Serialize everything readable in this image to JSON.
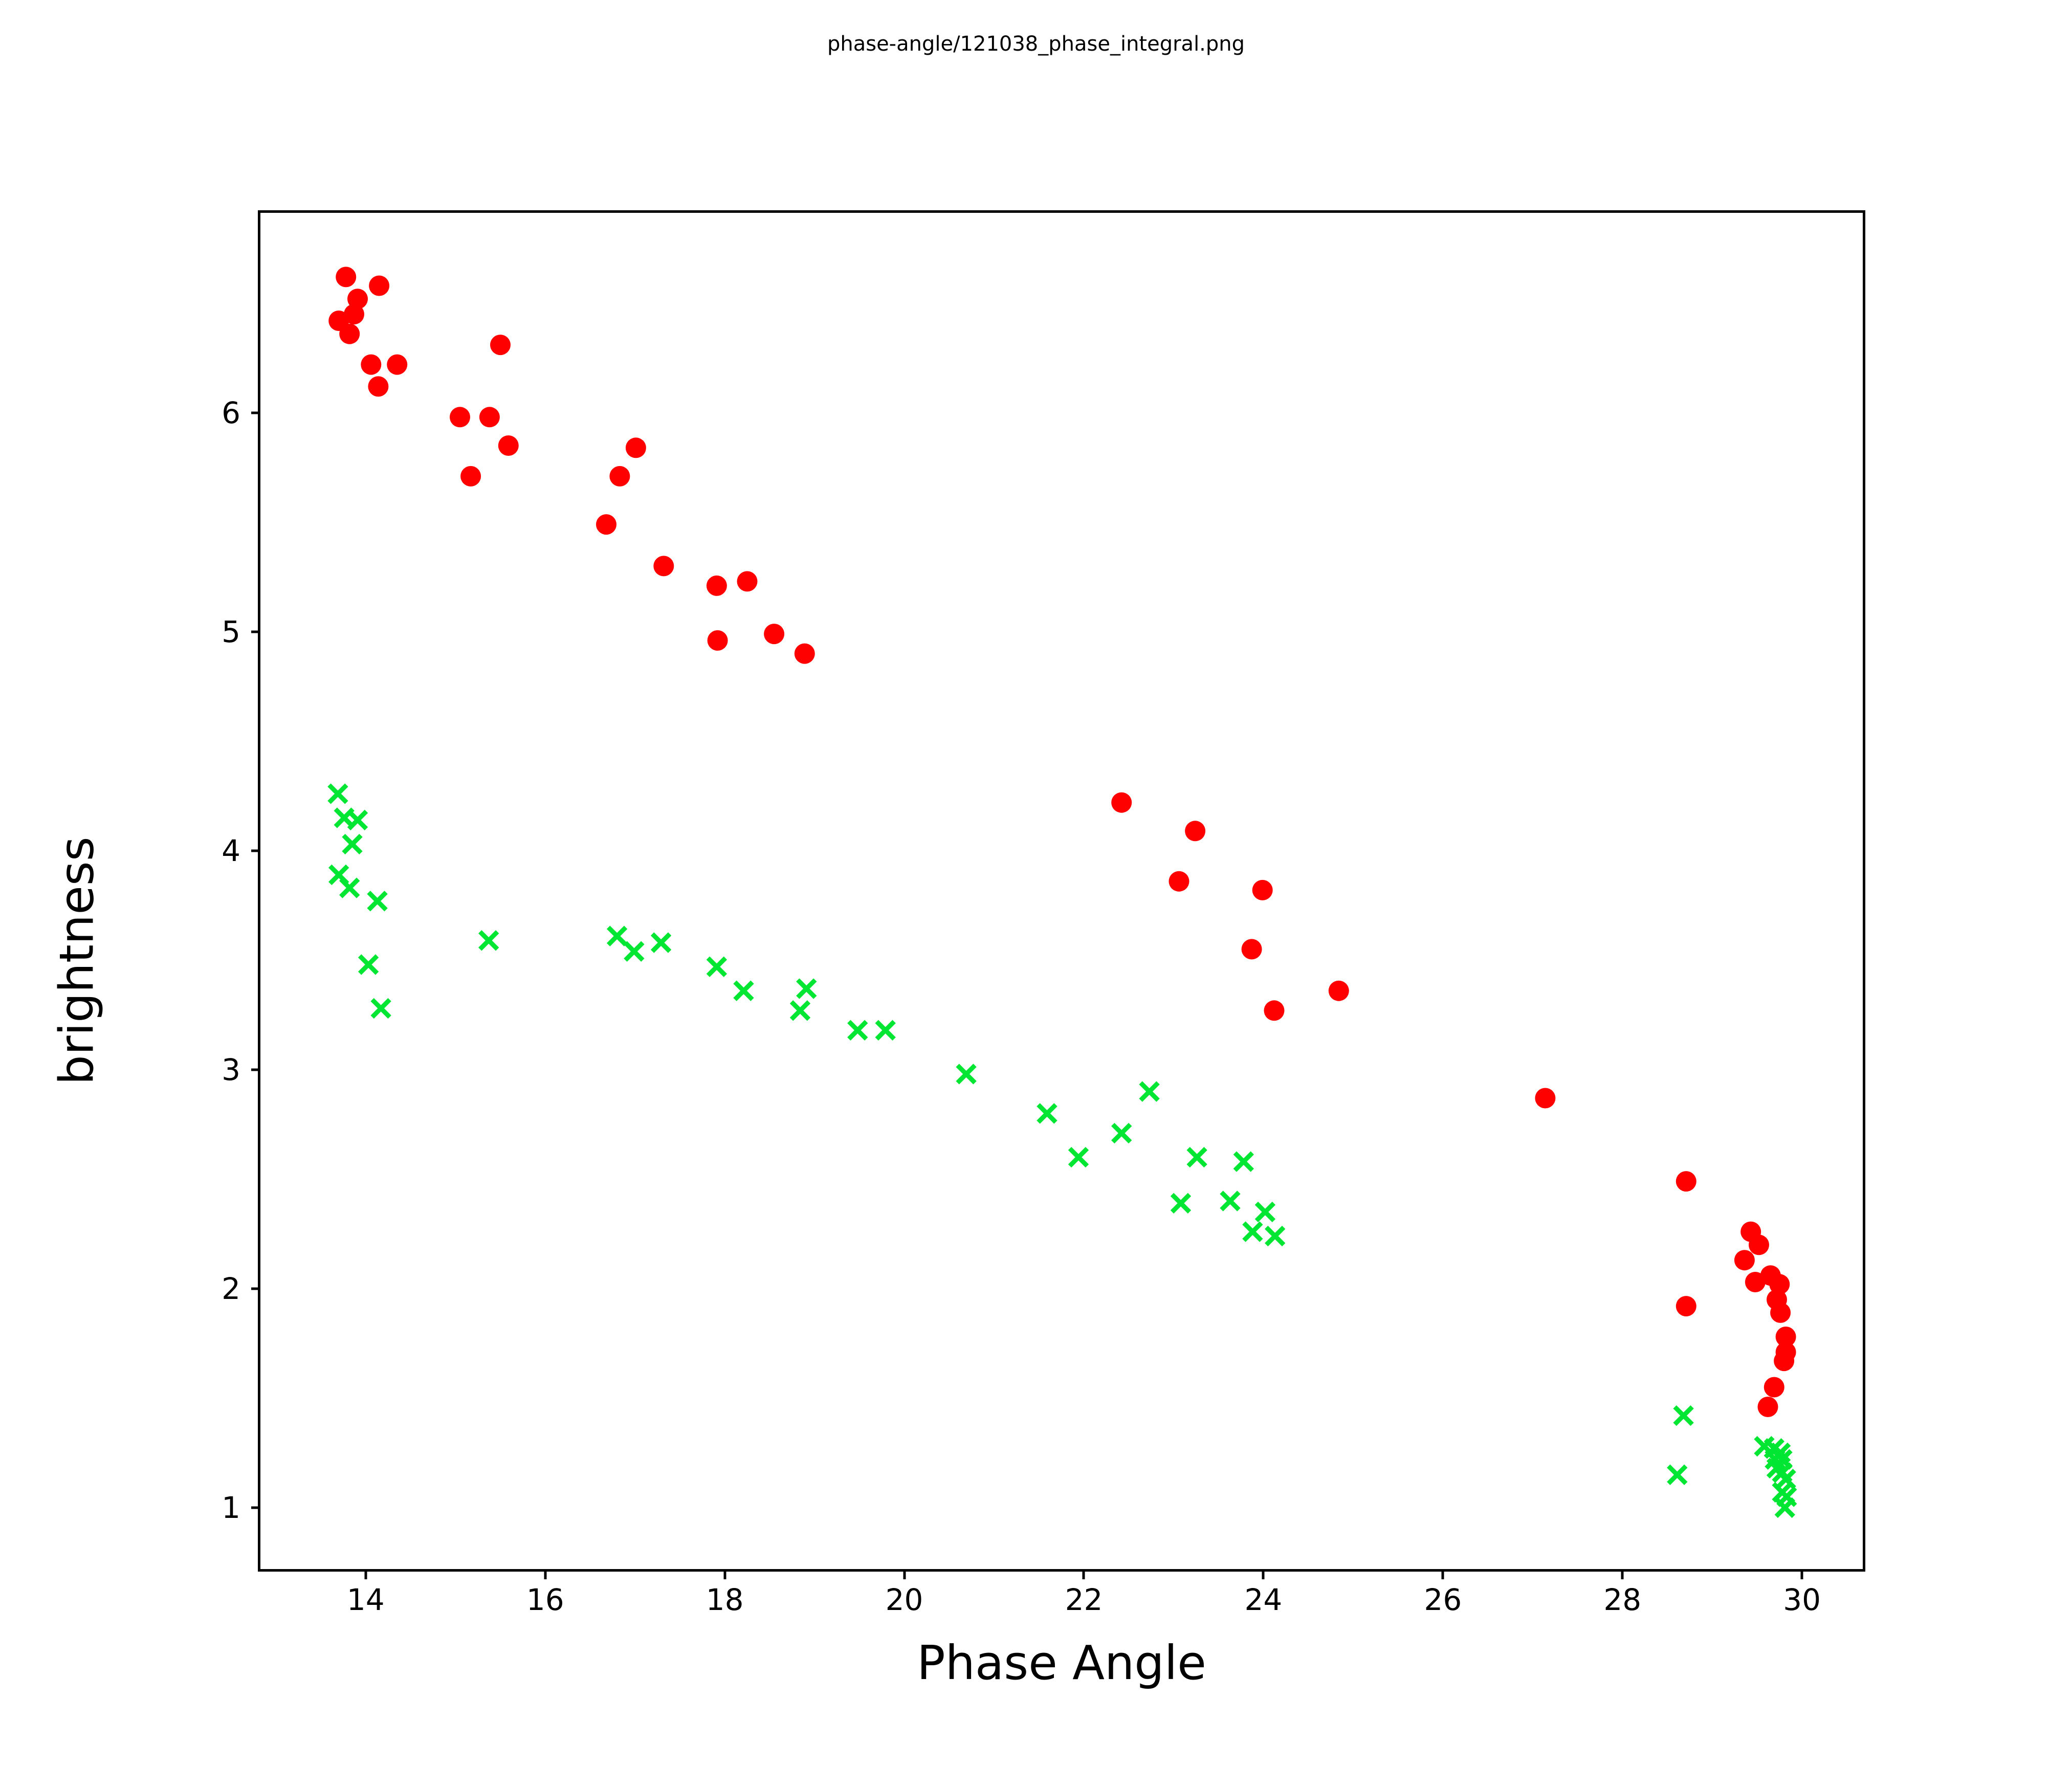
{
  "chart_data": {
    "type": "scatter",
    "title": "phase-angle/121038_phase_integral.png",
    "xlabel": "Phase Angle",
    "ylabel": "brightness",
    "xlim": [
      12.81,
      30.7
    ],
    "ylim": [
      0.71,
      6.92
    ],
    "x_ticks": [
      14,
      16,
      18,
      20,
      22,
      24,
      26,
      28,
      30
    ],
    "y_ticks": [
      1,
      2,
      3,
      4,
      5,
      6
    ],
    "grid": false,
    "legend": "none",
    "series": [
      {
        "name": "red-circles",
        "marker": "circle",
        "color": "#ff0000",
        "marker_size_px": 40,
        "points": [
          [
            13.78,
            6.62
          ],
          [
            14.15,
            6.58
          ],
          [
            13.91,
            6.52
          ],
          [
            13.87,
            6.45
          ],
          [
            13.7,
            6.42
          ],
          [
            13.82,
            6.36
          ],
          [
            14.06,
            6.22
          ],
          [
            14.35,
            6.22
          ],
          [
            14.14,
            6.12
          ],
          [
            15.5,
            6.31
          ],
          [
            15.05,
            5.98
          ],
          [
            15.38,
            5.98
          ],
          [
            15.59,
            5.85
          ],
          [
            15.17,
            5.71
          ],
          [
            17.01,
            5.84
          ],
          [
            16.83,
            5.71
          ],
          [
            16.68,
            5.49
          ],
          [
            17.32,
            5.3
          ],
          [
            17.91,
            5.21
          ],
          [
            18.25,
            5.23
          ],
          [
            17.92,
            4.96
          ],
          [
            18.55,
            4.99
          ],
          [
            18.89,
            4.9
          ],
          [
            22.42,
            4.22
          ],
          [
            23.24,
            4.09
          ],
          [
            23.06,
            3.86
          ],
          [
            23.99,
            3.82
          ],
          [
            23.87,
            3.55
          ],
          [
            24.84,
            3.36
          ],
          [
            24.12,
            3.27
          ],
          [
            27.14,
            2.87
          ],
          [
            28.71,
            2.49
          ],
          [
            28.71,
            1.92
          ],
          [
            29.43,
            2.26
          ],
          [
            29.52,
            2.2
          ],
          [
            29.36,
            2.13
          ],
          [
            29.48,
            2.03
          ],
          [
            29.65,
            2.06
          ],
          [
            29.75,
            2.02
          ],
          [
            29.72,
            1.95
          ],
          [
            29.76,
            1.89
          ],
          [
            29.82,
            1.78
          ],
          [
            29.82,
            1.71
          ],
          [
            29.8,
            1.67
          ],
          [
            29.69,
            1.55
          ],
          [
            29.62,
            1.46
          ]
        ]
      },
      {
        "name": "green-crosses",
        "marker": "x",
        "color": "#00e632",
        "marker_size_px": 34,
        "points": [
          [
            13.69,
            4.26
          ],
          [
            13.76,
            4.15
          ],
          [
            13.91,
            4.14
          ],
          [
            13.85,
            4.03
          ],
          [
            13.7,
            3.89
          ],
          [
            13.82,
            3.83
          ],
          [
            14.13,
            3.77
          ],
          [
            14.03,
            3.48
          ],
          [
            14.17,
            3.28
          ],
          [
            15.37,
            3.59
          ],
          [
            16.8,
            3.61
          ],
          [
            16.99,
            3.54
          ],
          [
            17.29,
            3.58
          ],
          [
            17.91,
            3.47
          ],
          [
            18.21,
            3.36
          ],
          [
            18.91,
            3.37
          ],
          [
            18.84,
            3.27
          ],
          [
            19.48,
            3.18
          ],
          [
            19.79,
            3.18
          ],
          [
            20.69,
            2.98
          ],
          [
            21.59,
            2.8
          ],
          [
            21.94,
            2.6
          ],
          [
            22.42,
            2.71
          ],
          [
            22.73,
            2.9
          ],
          [
            23.08,
            2.39
          ],
          [
            23.26,
            2.6
          ],
          [
            23.63,
            2.4
          ],
          [
            23.78,
            2.58
          ],
          [
            23.88,
            2.26
          ],
          [
            24.02,
            2.35
          ],
          [
            24.13,
            2.24
          ],
          [
            28.68,
            1.42
          ],
          [
            28.61,
            1.15
          ],
          [
            29.58,
            1.28
          ],
          [
            29.69,
            1.27
          ],
          [
            29.76,
            1.25
          ],
          [
            29.7,
            1.22
          ],
          [
            29.78,
            1.22
          ],
          [
            29.72,
            1.18
          ],
          [
            29.78,
            1.16
          ],
          [
            29.82,
            1.13
          ],
          [
            29.78,
            1.07
          ],
          [
            29.83,
            1.05
          ],
          [
            29.81,
            1.0
          ]
        ]
      }
    ]
  }
}
